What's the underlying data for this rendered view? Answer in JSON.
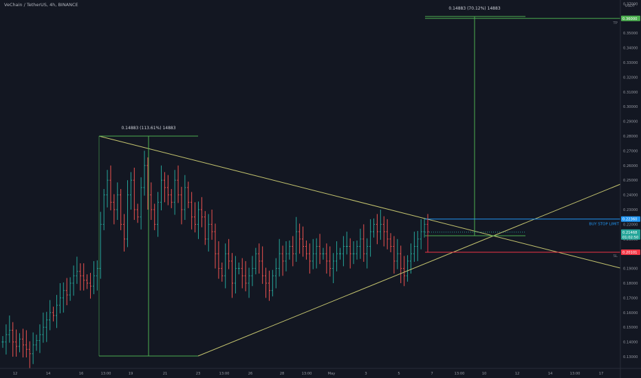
{
  "header": {
    "title": "VeChain / TetherUS, 4h, BINANCE"
  },
  "axis": {
    "currency": "USDT"
  },
  "colors": {
    "bg": "#131722",
    "up": "#26a69a",
    "down": "#ef5350",
    "trend": "#c8c870",
    "measure": "#4caf50",
    "buy": "#2196f3",
    "sl": "#f23645"
  },
  "chart_data": {
    "type": "candlestick",
    "symbol": "VeChain / TetherUS",
    "interval": "4h",
    "exchange": "BINANCE",
    "ylim": [
      0.125,
      0.38
    ],
    "yticks": [
      "0.37000",
      "0.36000",
      "0.35000",
      "0.34000",
      "0.33000",
      "0.32000",
      "0.31000",
      "0.30000",
      "0.29000",
      "0.28000",
      "0.27000",
      "0.26000",
      "0.25000",
      "0.24000",
      "0.23000",
      "0.22000",
      "0.21000",
      "0.20000",
      "0.19000",
      "0.18000",
      "0.17000",
      "0.16000",
      "0.15000",
      "0.14000",
      "0.13000"
    ],
    "xticks": [
      "12",
      "14",
      "16",
      "13:00",
      "19",
      "21",
      "23",
      "13:00",
      "26",
      "28",
      "13:00",
      "May",
      "3",
      "5",
      "7",
      "13:00",
      "10",
      "12",
      "14",
      "13:00",
      "17"
    ],
    "price_markers": {
      "tp": {
        "value": "0.36000",
        "label": "TP"
      },
      "buy_stop": {
        "value": "0.22360",
        "label": "BUY STOP LIMIT"
      },
      "current": {
        "value": "0.21468",
        "countdown": "01:02:50"
      },
      "sl": {
        "value": "0.20101",
        "label": "SL"
      }
    },
    "measurements": [
      {
        "label": "0.14883 (113.61%) 14883"
      },
      {
        "label": "0.14883 (70.12%) 14883"
      }
    ],
    "series": [
      {
        "values": [
          0.14,
          0.145,
          0.148,
          0.14,
          0.137,
          0.142,
          0.138,
          0.135,
          0.132,
          0.138,
          0.141,
          0.145,
          0.15,
          0.155,
          0.16,
          0.158,
          0.165,
          0.17,
          0.175,
          0.172,
          0.18,
          0.185,
          0.188,
          0.185,
          0.182,
          0.18,
          0.178,
          0.185,
          0.19,
          0.22,
          0.24,
          0.25,
          0.235,
          0.23,
          0.24,
          0.22,
          0.21,
          0.24,
          0.25,
          0.23,
          0.225,
          0.245,
          0.26,
          0.24,
          0.23,
          0.22,
          0.235,
          0.25,
          0.245,
          0.24,
          0.235,
          0.25,
          0.24,
          0.23,
          0.245,
          0.235,
          0.225,
          0.22,
          0.23,
          0.225,
          0.21,
          0.22,
          0.215,
          0.2,
          0.19,
          0.185,
          0.2,
          0.195,
          0.18,
          0.19,
          0.19,
          0.185,
          0.18,
          0.185,
          0.19,
          0.2,
          0.195,
          0.185,
          0.18,
          0.175,
          0.185,
          0.19,
          0.2,
          0.195,
          0.2,
          0.205,
          0.2,
          0.215,
          0.21,
          0.205,
          0.2,
          0.195,
          0.2,
          0.205,
          0.2,
          0.2,
          0.195,
          0.19,
          0.195,
          0.2,
          0.2,
          0.205,
          0.205,
          0.2,
          0.2,
          0.205,
          0.21,
          0.2,
          0.205,
          0.215,
          0.22,
          0.215,
          0.22,
          0.215,
          0.21,
          0.205,
          0.195,
          0.2,
          0.19,
          0.185,
          0.195,
          0.2,
          0.205,
          0.21,
          0.215,
          0.22,
          0.215
        ]
      }
    ]
  }
}
